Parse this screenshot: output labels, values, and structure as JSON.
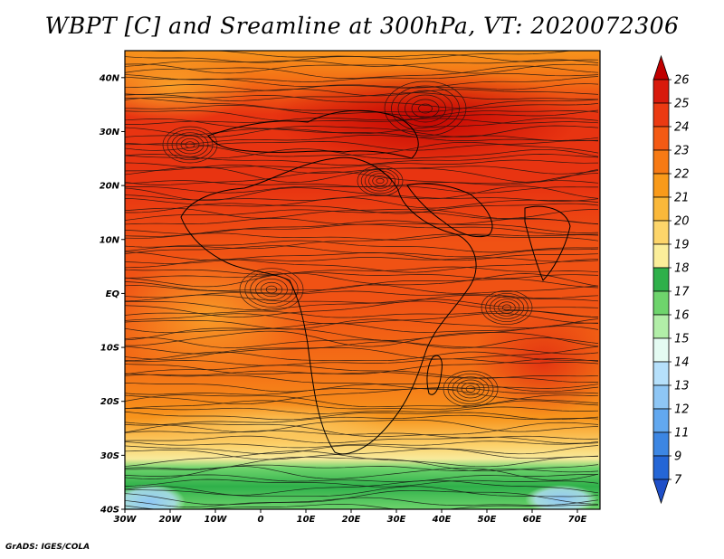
{
  "title": "WBPT [C] and Sreamline at 300hPa, VT: 2020072306",
  "footer": "GrADS: IGES/COLA",
  "axes": {
    "lat_labels": [
      "40N",
      "30N",
      "20N",
      "10N",
      "EQ",
      "10S",
      "20S",
      "30S",
      "40S"
    ],
    "lat_values": [
      40,
      30,
      20,
      10,
      0,
      -10,
      -20,
      -30,
      -40
    ],
    "lon_labels": [
      "30W",
      "20W",
      "10W",
      "0",
      "10E",
      "20E",
      "30E",
      "40E",
      "50E",
      "60E",
      "70E"
    ],
    "lon_values": [
      -30,
      -20,
      -10,
      0,
      10,
      20,
      30,
      40,
      50,
      60,
      70
    ],
    "lon_range": [
      -30,
      75
    ],
    "lat_range": [
      -40,
      45
    ]
  },
  "colorbar": {
    "labels": [
      "26",
      "25",
      "24",
      "23",
      "22",
      "21",
      "20",
      "19",
      "18",
      "17",
      "16",
      "15",
      "14",
      "13",
      "12",
      "11",
      "9",
      "7"
    ],
    "colors": [
      "#c00000",
      "#d81a0c",
      "#eb3a12",
      "#f45a14",
      "#f77a14",
      "#f99a1a",
      "#fab83a",
      "#fdd56a",
      "#fbee9a",
      "#2fb04a",
      "#6ed46c",
      "#b2eea8",
      "#e4fbf2",
      "#b6e0fb",
      "#8ec6f5",
      "#62a8ef",
      "#3c86e3",
      "#2466d6",
      "#1f4fc8"
    ]
  },
  "field": {
    "levels_colors": {
      "26": "#b80000",
      "25": "#d21408",
      "24": "#e83411",
      "23": "#f05214",
      "22": "#f47216",
      "21": "#f7941c",
      "20": "#f9b23a",
      "19": "#fcd16a",
      "18": "#f8ea9c",
      "17": "#2fb04a",
      "16": "#6ed46c",
      "15": "#b2eea8",
      "14": "#e4fbf2",
      "13": "#b6e0fb",
      "12": "#8ec6f5"
    }
  }
}
